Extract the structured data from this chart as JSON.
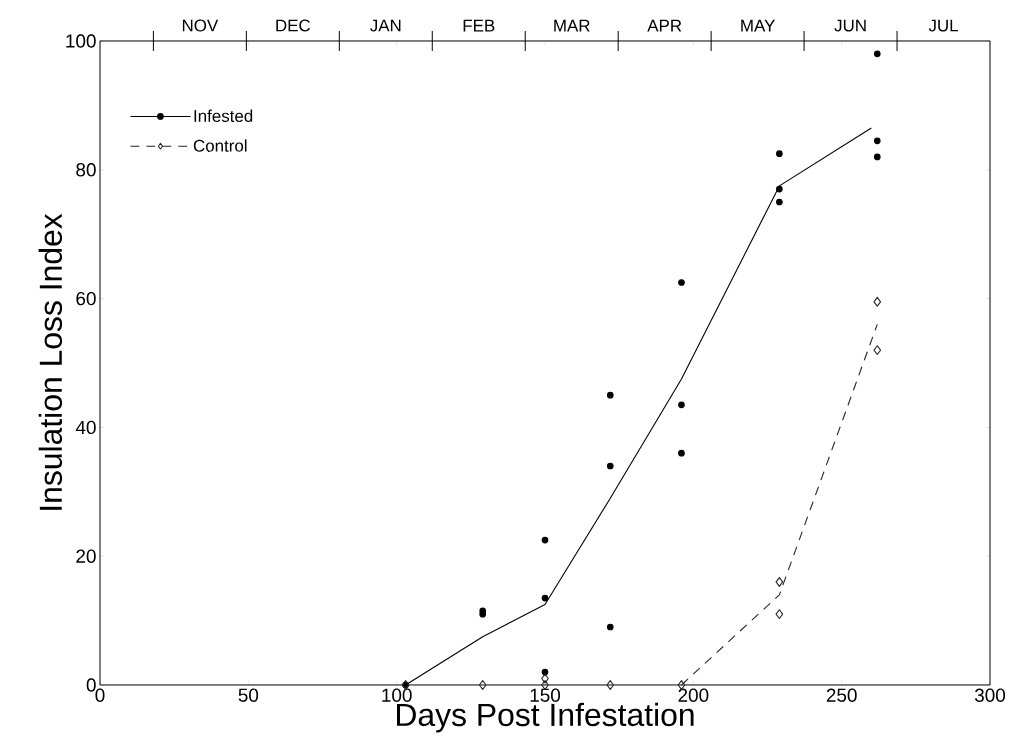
{
  "chart_data": {
    "type": "scatter",
    "xlabel": "Days Post Infestation",
    "ylabel": "Insulation Loss Index",
    "xlim": [
      0,
      300
    ],
    "ylim": [
      0,
      100
    ],
    "xticks": [
      0,
      50,
      100,
      150,
      200,
      250,
      300
    ],
    "yticks": [
      0,
      20,
      40,
      60,
      80,
      100
    ],
    "annotations": [
      "NOV",
      "DEC",
      "JAN",
      "FEB",
      "MAR",
      "APR",
      "MAY",
      "JUN",
      "JUL"
    ],
    "legend": "top left",
    "series": [
      {
        "name": "Infested",
        "marker": "circle",
        "line_style": "solid",
        "color": "#000000",
        "x": [
          103,
          129,
          129,
          150,
          150,
          150,
          172,
          172,
          172,
          196,
          196,
          196,
          229,
          229,
          229,
          262,
          262,
          262
        ],
        "values": [
          0,
          11,
          11.5,
          13.5,
          22.5,
          2,
          45,
          34,
          9,
          62.5,
          43.5,
          36,
          82.5,
          77,
          75,
          98,
          84.5,
          82
        ]
      },
      {
        "name": "Control",
        "marker": "diamond",
        "line_style": "dashed",
        "color": "#262626",
        "x": [
          103,
          129,
          150,
          150,
          172,
          196,
          229,
          229,
          262,
          262
        ],
        "values": [
          0,
          0,
          0,
          1,
          0,
          0,
          16,
          11,
          59.5,
          52
        ]
      },
      {
        "type": "line",
        "line_style": "solid",
        "marker": "none",
        "color": "#000000",
        "x": [
          103,
          129,
          150,
          172,
          196,
          229,
          260
        ],
        "values": [
          0,
          7.5,
          12.5,
          29,
          47.5,
          77.5,
          86.5
        ]
      },
      {
        "type": "line",
        "line_style": "dashed",
        "marker": "none",
        "color": "#262626",
        "x": [
          196,
          229,
          262
        ],
        "values": [
          0,
          14,
          56
        ]
      }
    ]
  }
}
